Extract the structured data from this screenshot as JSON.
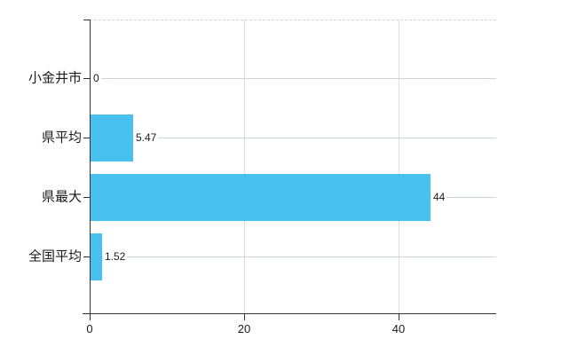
{
  "chart_data": {
    "type": "bar",
    "orientation": "horizontal",
    "title": "",
    "xlabel": "",
    "ylabel": "",
    "categories": [
      "小金井市",
      "県平均",
      "県最大",
      "全国平均"
    ],
    "values": [
      0,
      5.47,
      44,
      1.52
    ],
    "value_labels": [
      "0",
      "5.47",
      "44",
      "1.52"
    ],
    "x_ticks": [
      0,
      20,
      40
    ],
    "x_tick_labels": [
      "0",
      "20",
      "40"
    ],
    "xlim": [
      0,
      52.6
    ],
    "grid": true,
    "legend_position": "none",
    "colors": {
      "bar": "#49c1f0",
      "axis": "#333333",
      "h_gridline": "#ccd6cc",
      "v_gridline": "#dcdcdc",
      "top_dashed_line": "#d6d6d6",
      "text": "#1a1a1a"
    }
  }
}
